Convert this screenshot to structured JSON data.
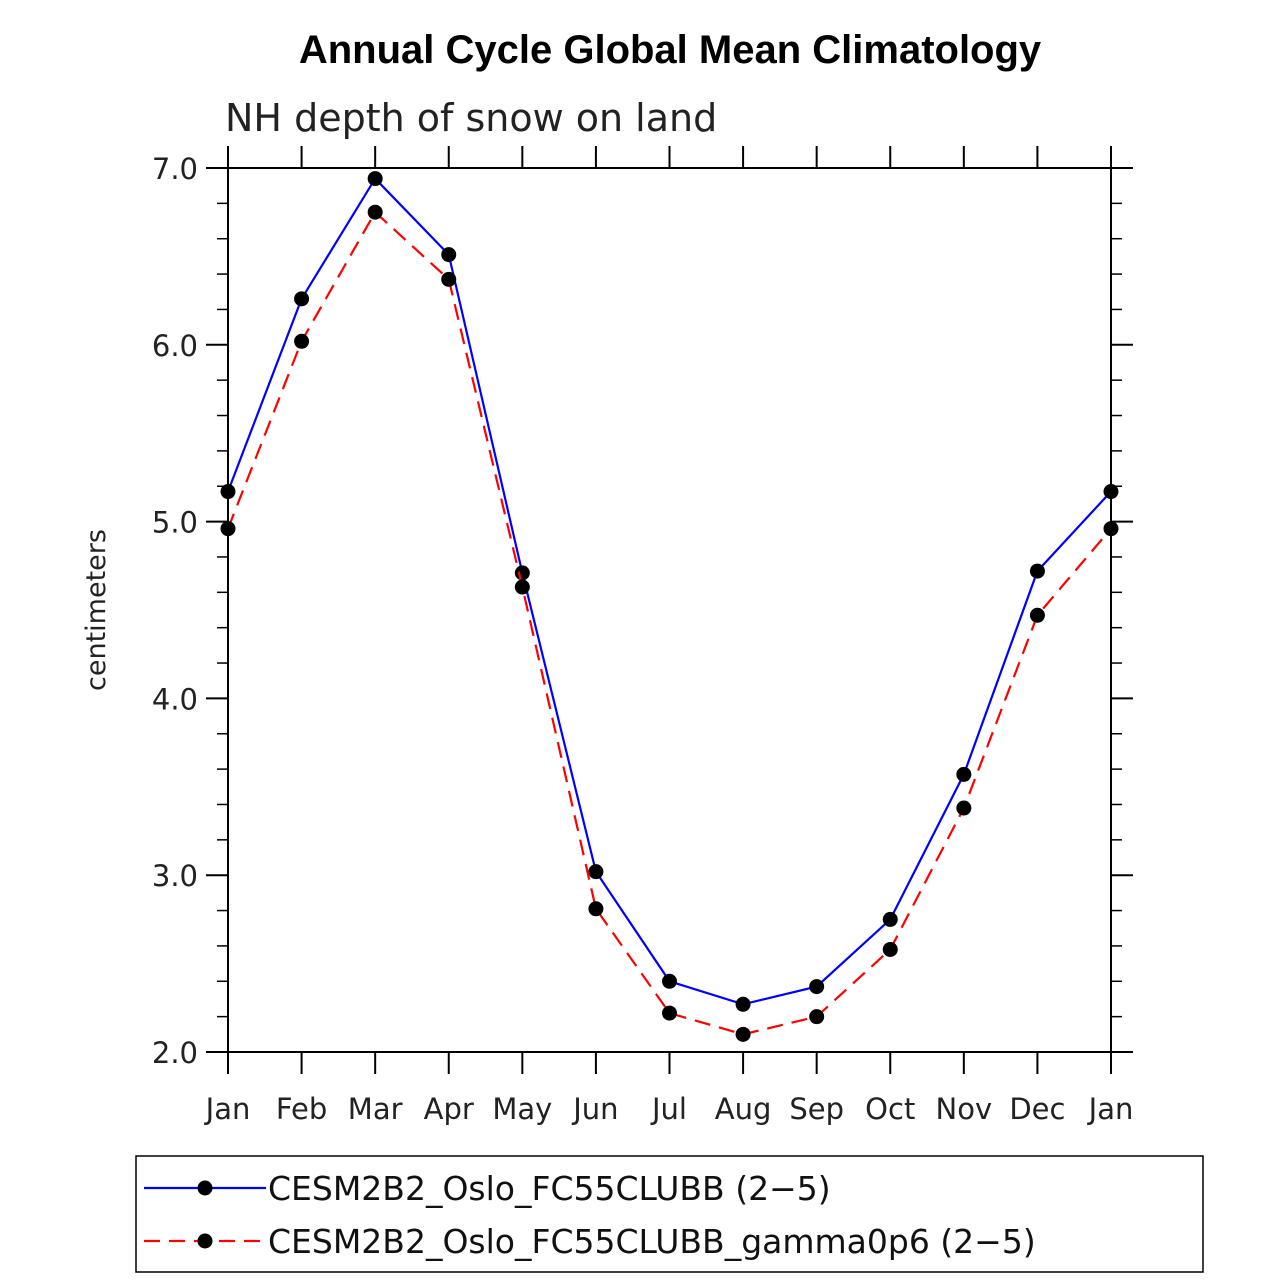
{
  "chart_data": {
    "type": "line",
    "title": "Annual Cycle Global Mean Climatology",
    "subtitle": "NH depth of snow on land",
    "xlabel": "",
    "ylabel": "centimeters",
    "categories": [
      "Jan",
      "Feb",
      "Mar",
      "Apr",
      "May",
      "Jun",
      "Jul",
      "Aug",
      "Sep",
      "Oct",
      "Nov",
      "Dec",
      "Jan"
    ],
    "ylim": [
      2.0,
      7.0
    ],
    "yticks": [
      "2.0",
      "3.0",
      "4.0",
      "5.0",
      "6.0",
      "7.0"
    ],
    "grid": false,
    "legend_position": "bottom",
    "series": [
      {
        "name": "CESM2B2_Oslo_FC55CLUBB (2-5)",
        "legend_label": "CESM2B2_Oslo_FC55CLUBB (2−5)",
        "color": "#0000ff",
        "line_style": "solid",
        "marker": "filled-circle",
        "values": [
          5.17,
          6.26,
          6.94,
          6.51,
          4.71,
          3.02,
          2.4,
          2.27,
          2.37,
          2.75,
          3.57,
          4.72,
          5.17
        ]
      },
      {
        "name": "CESM2B2_Oslo_FC55CLUBB_gamma0p6 (2-5)",
        "legend_label": "CESM2B2_Oslo_FC55CLUBB_gamma0p6 (2−5)",
        "color": "#ff0000",
        "line_style": "dashed",
        "marker": "filled-circle",
        "values": [
          4.96,
          6.02,
          6.75,
          6.37,
          4.63,
          2.81,
          2.22,
          2.1,
          2.2,
          2.58,
          3.38,
          4.47,
          4.96
        ]
      }
    ]
  }
}
